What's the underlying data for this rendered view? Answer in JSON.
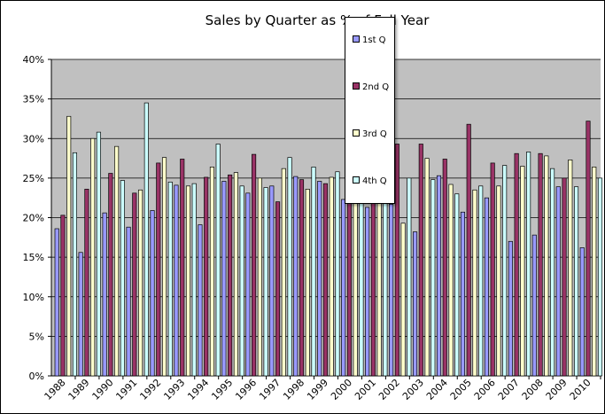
{
  "chart_data": {
    "type": "bar",
    "title": "Sales by Quarter as % of Full Year",
    "categories": [
      "1988",
      "1989",
      "1990",
      "1991",
      "1992",
      "1993",
      "1994",
      "1995",
      "1996",
      "1997",
      "1998",
      "1999",
      "2000",
      "2001",
      "2002",
      "2003",
      "2004",
      "2005",
      "2006",
      "2007",
      "2008",
      "2009",
      "2010"
    ],
    "ylim": [
      0,
      40
    ],
    "yticks": [
      "0%",
      "5%",
      "10%",
      "15%",
      "20%",
      "25%",
      "30%",
      "35%",
      "40%"
    ],
    "grid": true,
    "legend_position": "top-center",
    "series": [
      {
        "name": "1st Q",
        "color": "#9999ff",
        "values": [
          18.6,
          15.6,
          20.6,
          18.8,
          20.9,
          24.1,
          19.1,
          24.6,
          23.1,
          24.0,
          25.2,
          24.6,
          22.3,
          21.3,
          21.7,
          18.2,
          25.3,
          20.7,
          22.5,
          17.0,
          17.8,
          23.9,
          16.2
        ]
      },
      {
        "name": "2nd Q",
        "color": "#993366",
        "values": [
          20.3,
          23.6,
          25.6,
          23.1,
          26.9,
          27.4,
          25.1,
          25.4,
          28.0,
          22.0,
          24.8,
          24.3,
          23.0,
          22.0,
          29.3,
          29.3,
          27.4,
          31.8,
          26.9,
          28.1,
          28.1,
          25.0,
          32.2
        ]
      },
      {
        "name": "3rd Q",
        "color": "#ffffcc",
        "values": [
          32.8,
          30.0,
          29.0,
          23.5,
          27.6,
          24.0,
          26.4,
          25.7,
          25.0,
          26.2,
          23.6,
          25.1,
          27.0,
          27.0,
          19.3,
          27.5,
          24.2,
          23.5,
          24.0,
          26.5,
          27.8,
          27.3,
          26.4
        ]
      },
      {
        "name": "4th Q",
        "color": "#ccffff",
        "values": [
          28.2,
          30.8,
          24.7,
          34.5,
          24.5,
          24.3,
          29.3,
          24.0,
          23.8,
          27.6,
          26.4,
          25.8,
          27.7,
          29.7,
          25.0,
          24.8,
          23.0,
          24.0,
          26.6,
          28.3,
          26.2,
          23.9,
          25.0
        ]
      }
    ]
  }
}
